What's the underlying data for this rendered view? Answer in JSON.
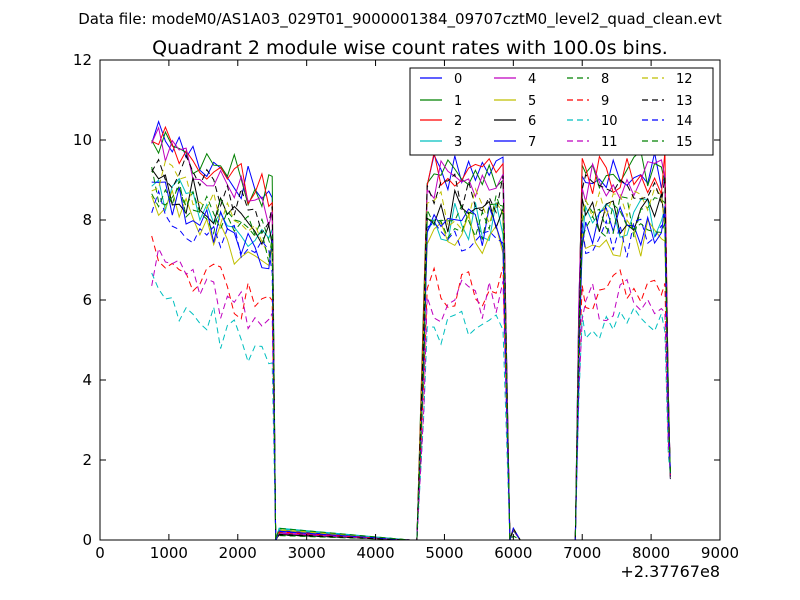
{
  "header": "Data file: modeM0/AS1A03_029T01_9000001384_09707cztM0_level2_quad_clean.evt",
  "chart_data": {
    "type": "line",
    "title": "Quadrant 2 module wise count rates with 100.0s bins.",
    "xlabel": "",
    "ylabel": "",
    "x_offset_label": "+2.37767e8",
    "xlim": [
      0,
      9000
    ],
    "ylim": [
      0,
      12
    ],
    "x_ticks": [
      0,
      1000,
      2000,
      3000,
      4000,
      5000,
      6000,
      7000,
      8000,
      9000
    ],
    "y_ticks": [
      0,
      2,
      4,
      6,
      8,
      10,
      12
    ],
    "grid": false,
    "legend_position": "top-right",
    "legend_columns": 4,
    "segments": [
      {
        "x_start": 750,
        "x_end": 2500
      },
      {
        "x_start": 4750,
        "x_end": 5850
      },
      {
        "x_start": 7000,
        "x_end": 8200
      }
    ],
    "x_points": [
      750,
      850,
      950,
      1050,
      1150,
      1250,
      1350,
      1450,
      1550,
      1650,
      1750,
      1850,
      1950,
      2050,
      2150,
      2250,
      2350,
      2450,
      2500,
      2550,
      2600,
      4500,
      4600,
      4700,
      4750,
      4850,
      4950,
      5050,
      5150,
      5250,
      5350,
      5450,
      5550,
      5650,
      5750,
      5850,
      5950,
      6000,
      6100,
      6900,
      6950,
      7000,
      7050,
      7150,
      7250,
      7350,
      7450,
      7550,
      7650,
      7750,
      7850,
      7950,
      8050,
      8150,
      8200,
      8250,
      8280
    ],
    "series": [
      {
        "name": "0",
        "color": "#0000ff",
        "dash": "solid",
        "level": 9.3
      },
      {
        "name": "1",
        "color": "#008000",
        "dash": "solid",
        "level": 9.3
      },
      {
        "name": "2",
        "color": "#ff0000",
        "dash": "solid",
        "level": 9.2
      },
      {
        "name": "3",
        "color": "#00bfbf",
        "dash": "solid",
        "level": 8.0
      },
      {
        "name": "4",
        "color": "#bf00bf",
        "dash": "solid",
        "level": 9.0
      },
      {
        "name": "5",
        "color": "#bfbf00",
        "dash": "solid",
        "level": 7.6
      },
      {
        "name": "6",
        "color": "#000000",
        "dash": "solid",
        "level": 8.2
      },
      {
        "name": "7",
        "color": "#0000ff",
        "dash": "solid",
        "level": 7.8
      },
      {
        "name": "8",
        "color": "#008000",
        "dash": "dashed",
        "level": 8.1
      },
      {
        "name": "9",
        "color": "#ff0000",
        "dash": "dashed",
        "level": 6.3
      },
      {
        "name": "10",
        "color": "#00bfbf",
        "dash": "dashed",
        "level": 5.3
      },
      {
        "name": "11",
        "color": "#bf00bf",
        "dash": "dashed",
        "level": 6.0
      },
      {
        "name": "12",
        "color": "#bfbf00",
        "dash": "dashed",
        "level": 8.3
      },
      {
        "name": "13",
        "color": "#000000",
        "dash": "dashed",
        "level": 8.7
      },
      {
        "name": "14",
        "color": "#0000ff",
        "dash": "dashed",
        "level": 7.6
      },
      {
        "name": "15",
        "color": "#008000",
        "dash": "dashed",
        "level": 8.0
      }
    ]
  }
}
